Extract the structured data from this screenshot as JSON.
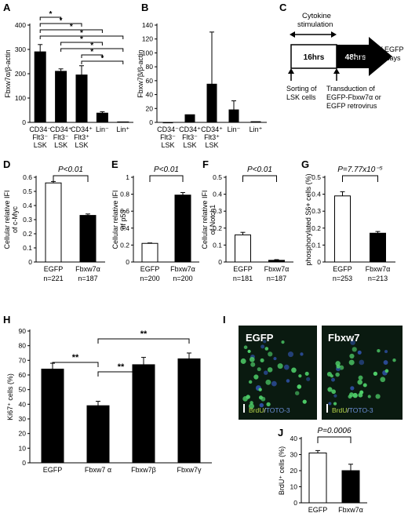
{
  "panels": {
    "A": {
      "label": "A"
    },
    "B": {
      "label": "B"
    },
    "C": {
      "label": "C"
    },
    "D": {
      "label": "D"
    },
    "E": {
      "label": "E"
    },
    "F": {
      "label": "F"
    },
    "G": {
      "label": "G"
    },
    "H": {
      "label": "H"
    },
    "I": {
      "label": "I"
    },
    "J": {
      "label": "J"
    }
  },
  "schematic_c": {
    "cytokine_line1": "Cytokine",
    "cytokine_line2": "stimulation",
    "box1": "16hrs",
    "box2": "48hrs",
    "sorting_right_line1": "Sorting of EGFP",
    "sorting_right_line2": "cells for assays",
    "sorting_lsk_line1": "Sorting of",
    "sorting_lsk_line2": "LSK cells",
    "transduction_line1": "Transduction of",
    "transduction_line2": "EGFP-Fbxw7α or",
    "transduction_line3": "EGFP retrovirus"
  },
  "micrographs_i": [
    {
      "title": "EGFP",
      "stain_a": "BrdU",
      "stain_sep": "/",
      "stain_b": "TOTO-3"
    },
    {
      "title": "Fbxw7",
      "stain_a": "BrdU",
      "stain_sep": "/",
      "stain_b": "TOTO-3"
    }
  ],
  "colors": {
    "filled": "#000000",
    "open": "#ffffff",
    "micro_bg": "#0a1a10",
    "cell_green": "#4fd06a",
    "cell_blue": "#2d4fa0",
    "brdu_text": "#b8d84a",
    "toto_text": "#6b8fd8"
  },
  "chart_data": [
    {
      "panel": "A",
      "type": "bar",
      "categories": [
        "CD34⁻ Flt3⁻ LSK",
        "CD34⁺ Flt3⁻ LSK",
        "CD34⁺ Flt3⁺ LSK",
        "Lin⁻",
        "Lin⁺"
      ],
      "category_lines": [
        [
          "CD34⁻",
          "Flt3⁻",
          "LSK"
        ],
        [
          "CD34⁺",
          "Flt3⁻",
          "LSK"
        ],
        [
          "CD34⁺",
          "Flt3⁺",
          "LSK"
        ],
        [
          "Lin⁻"
        ],
        [
          "Lin⁺"
        ]
      ],
      "values": [
        290,
        210,
        195,
        38,
        2
      ],
      "errors": [
        30,
        10,
        38,
        6,
        0
      ],
      "ylabel": "Fbxw7α/β-actin",
      "ylim": [
        0,
        400
      ],
      "yticks": [
        0,
        100,
        200,
        300,
        400
      ],
      "fill": [
        "filled",
        "filled",
        "filled",
        "filled",
        "filled"
      ],
      "significance_marker": "*",
      "significance": [
        [
          0,
          1
        ],
        [
          0,
          2
        ],
        [
          0,
          3
        ],
        [
          0,
          4
        ],
        [
          1,
          3
        ],
        [
          1,
          4
        ],
        [
          2,
          3
        ],
        [
          2,
          4
        ]
      ]
    },
    {
      "panel": "B",
      "type": "bar",
      "categories": [
        "CD34⁻ Flt3⁻ LSK",
        "CD34⁺ Flt3⁻ LSK",
        "CD34⁺ Flt3⁺ LSK",
        "Lin⁻",
        "Lin⁺"
      ],
      "category_lines": [
        [
          "CD34⁻",
          "Flt3⁻",
          "LSK"
        ],
        [
          "CD34⁺",
          "Flt3⁻",
          "LSK"
        ],
        [
          "CD34⁺",
          "Flt3⁺",
          "LSK"
        ],
        [
          "Lin⁻"
        ],
        [
          "Lin⁺"
        ]
      ],
      "values": [
        0,
        11,
        55,
        18,
        1
      ],
      "errors": [
        0,
        0,
        75,
        13,
        0
      ],
      "ylabel": "Fbxw7β/β-actin",
      "ylim": [
        0,
        140
      ],
      "yticks": [
        0,
        20,
        40,
        60,
        80,
        100,
        120,
        140
      ],
      "fill": [
        "filled",
        "filled",
        "filled",
        "filled",
        "filled"
      ]
    },
    {
      "panel": "D",
      "type": "bar",
      "categories": [
        "EGFP",
        "Fbxw7α"
      ],
      "n_labels": [
        "n=221",
        "n=187"
      ],
      "values": [
        0.56,
        0.33
      ],
      "errors": [
        0.01,
        0.01
      ],
      "ylabel": "Cellular relative IFI of c-Myc",
      "ylabel_lines": [
        "Cellular relative IFI",
        "of c-Myc"
      ],
      "ylim": [
        0,
        0.6
      ],
      "yticks": [
        0,
        0.1,
        0.2,
        0.3,
        0.4,
        0.5,
        0.6
      ],
      "fill": [
        "open",
        "filled"
      ],
      "pvalue": "P<0.01",
      "significance": [
        [
          0,
          1
        ]
      ]
    },
    {
      "panel": "E",
      "type": "bar",
      "categories": [
        "EGFP",
        "Fbxw7α"
      ],
      "n_labels": [
        "n=200",
        "n=200"
      ],
      "values": [
        0.22,
        0.79
      ],
      "errors": [
        0.005,
        0.03
      ],
      "ylabel": "Cellular relative IFI of p53",
      "ylabel_lines": [
        "Cellular relative IFI",
        "of p53"
      ],
      "ylim": [
        0,
        1
      ],
      "yticks": [
        0,
        0.2,
        0.4,
        0.6,
        0.8,
        1
      ],
      "fill": [
        "open",
        "filled"
      ],
      "pvalue": "P<0.01",
      "significance": [
        [
          0,
          1
        ]
      ]
    },
    {
      "panel": "F",
      "type": "bar",
      "categories": [
        "EGFP",
        "Fbxw7α"
      ],
      "n_labels": [
        "n=181",
        "n=187"
      ],
      "values": [
        0.16,
        0.01
      ],
      "errors": [
        0.015,
        0.004
      ],
      "ylabel": "Cellular relative IFI of Notch1",
      "ylabel_lines": [
        "Cellular relative IFI",
        "of Notch1"
      ],
      "ylim": [
        0,
        0.5
      ],
      "yticks": [
        0,
        0.1,
        0.2,
        0.3,
        0.4,
        0.5
      ],
      "fill": [
        "open",
        "filled"
      ],
      "pvalue": "P<0.01",
      "significance": [
        [
          0,
          1
        ]
      ]
    },
    {
      "panel": "G",
      "type": "bar",
      "categories": [
        "EGFP",
        "Fbxw7α"
      ],
      "n_labels": [
        "n=253",
        "n=213"
      ],
      "values": [
        0.39,
        0.17
      ],
      "errors": [
        0.025,
        0.01
      ],
      "ylabel": "phosphorylated S6+ cells (%)",
      "ylabel_lines": [
        "phosphorylated S6+ cells (%)"
      ],
      "ylim": [
        0,
        0.5
      ],
      "yticks": [
        0,
        0.1,
        0.2,
        0.3,
        0.4,
        0.5
      ],
      "fill": [
        "open",
        "filled"
      ],
      "pvalue": "P=7.77x10⁻⁵",
      "significance": [
        [
          0,
          1
        ]
      ]
    },
    {
      "panel": "H",
      "type": "bar",
      "categories": [
        "EGFP",
        "Fbxw7 α",
        "Fbxw7β",
        "Fbxw7γ"
      ],
      "values": [
        64,
        39,
        67,
        71
      ],
      "errors": [
        4,
        3,
        5,
        4
      ],
      "ylabel": "Ki67⁺ cells (%)",
      "ylim": [
        0,
        90
      ],
      "yticks": [
        0,
        10,
        20,
        30,
        40,
        50,
        60,
        70,
        80,
        90
      ],
      "fill": [
        "filled",
        "filled",
        "filled",
        "filled"
      ],
      "significance_marker": "**",
      "significance": [
        [
          0,
          1
        ],
        [
          1,
          2
        ],
        [
          1,
          3
        ]
      ]
    },
    {
      "panel": "J",
      "type": "bar",
      "categories": [
        "EGFP",
        "Fbxw7α"
      ],
      "values": [
        31,
        20
      ],
      "errors": [
        1.5,
        4
      ],
      "ylabel": "BrdU⁺ cells (%)",
      "ylim": [
        0,
        40
      ],
      "yticks": [
        0,
        10,
        20,
        30,
        40
      ],
      "fill": [
        "open",
        "filled"
      ],
      "pvalue": "P=0.0006",
      "significance": [
        [
          0,
          1
        ]
      ]
    }
  ]
}
